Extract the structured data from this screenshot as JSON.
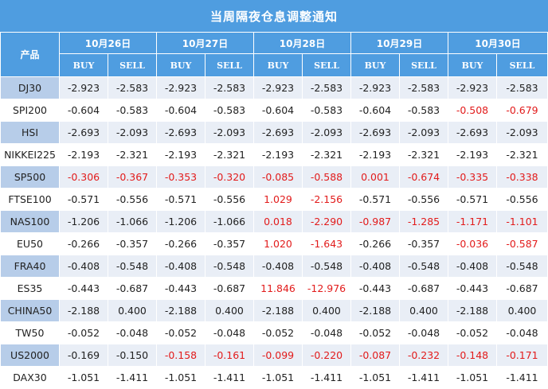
{
  "title": "当周隔夜仓息调整通知",
  "product_header": "产品",
  "dates": [
    "10月26日",
    "10月27日",
    "10月28日",
    "10月29日",
    "10月30日"
  ],
  "buy_label": "BUY",
  "sell_label": "SELL",
  "highlight_color": "#e21b1b",
  "rows": [
    {
      "product": "DJ30",
      "cells": [
        {
          "v": "-2.923",
          "h": false
        },
        {
          "v": "-2.583",
          "h": false
        },
        {
          "v": "-2.923",
          "h": false
        },
        {
          "v": "-2.583",
          "h": false
        },
        {
          "v": "-2.923",
          "h": false
        },
        {
          "v": "-2.583",
          "h": false
        },
        {
          "v": "-2.923",
          "h": false
        },
        {
          "v": "-2.583",
          "h": false
        },
        {
          "v": "-2.923",
          "h": false
        },
        {
          "v": "-2.583",
          "h": false
        }
      ]
    },
    {
      "product": "SPI200",
      "cells": [
        {
          "v": "-0.604",
          "h": false
        },
        {
          "v": "-0.583",
          "h": false
        },
        {
          "v": "-0.604",
          "h": false
        },
        {
          "v": "-0.583",
          "h": false
        },
        {
          "v": "-0.604",
          "h": false
        },
        {
          "v": "-0.583",
          "h": false
        },
        {
          "v": "-0.604",
          "h": false
        },
        {
          "v": "-0.583",
          "h": false
        },
        {
          "v": "-0.508",
          "h": true
        },
        {
          "v": "-0.679",
          "h": true
        }
      ]
    },
    {
      "product": "HSI",
      "cells": [
        {
          "v": "-2.693",
          "h": false
        },
        {
          "v": "-2.093",
          "h": false
        },
        {
          "v": "-2.693",
          "h": false
        },
        {
          "v": "-2.093",
          "h": false
        },
        {
          "v": "-2.693",
          "h": false
        },
        {
          "v": "-2.093",
          "h": false
        },
        {
          "v": "-2.693",
          "h": false
        },
        {
          "v": "-2.093",
          "h": false
        },
        {
          "v": "-2.693",
          "h": false
        },
        {
          "v": "-2.093",
          "h": false
        }
      ]
    },
    {
      "product": "NIKKEI225",
      "cells": [
        {
          "v": "-2.193",
          "h": false
        },
        {
          "v": "-2.321",
          "h": false
        },
        {
          "v": "-2.193",
          "h": false
        },
        {
          "v": "-2.321",
          "h": false
        },
        {
          "v": "-2.193",
          "h": false
        },
        {
          "v": "-2.321",
          "h": false
        },
        {
          "v": "-2.193",
          "h": false
        },
        {
          "v": "-2.321",
          "h": false
        },
        {
          "v": "-2.193",
          "h": false
        },
        {
          "v": "-2.321",
          "h": false
        }
      ]
    },
    {
      "product": "SP500",
      "cells": [
        {
          "v": "-0.306",
          "h": true
        },
        {
          "v": "-0.367",
          "h": true
        },
        {
          "v": "-0.353",
          "h": true
        },
        {
          "v": "-0.320",
          "h": true
        },
        {
          "v": "-0.085",
          "h": true
        },
        {
          "v": "-0.588",
          "h": true
        },
        {
          "v": "0.001",
          "h": true
        },
        {
          "v": "-0.674",
          "h": true
        },
        {
          "v": "-0.335",
          "h": true
        },
        {
          "v": "-0.338",
          "h": true
        }
      ]
    },
    {
      "product": "FTSE100",
      "cells": [
        {
          "v": "-0.571",
          "h": false
        },
        {
          "v": "-0.556",
          "h": false
        },
        {
          "v": "-0.571",
          "h": false
        },
        {
          "v": "-0.556",
          "h": false
        },
        {
          "v": "1.029",
          "h": true
        },
        {
          "v": "-2.156",
          "h": true
        },
        {
          "v": "-0.571",
          "h": false
        },
        {
          "v": "-0.556",
          "h": false
        },
        {
          "v": "-0.571",
          "h": false
        },
        {
          "v": "-0.556",
          "h": false
        }
      ]
    },
    {
      "product": "NAS100",
      "cells": [
        {
          "v": "-1.206",
          "h": false
        },
        {
          "v": "-1.066",
          "h": false
        },
        {
          "v": "-1.206",
          "h": false
        },
        {
          "v": "-1.066",
          "h": false
        },
        {
          "v": "0.018",
          "h": true
        },
        {
          "v": "-2.290",
          "h": true
        },
        {
          "v": "-0.987",
          "h": true
        },
        {
          "v": "-1.285",
          "h": true
        },
        {
          "v": "-1.171",
          "h": true
        },
        {
          "v": "-1.101",
          "h": true
        }
      ]
    },
    {
      "product": "EU50",
      "cells": [
        {
          "v": "-0.266",
          "h": false
        },
        {
          "v": "-0.357",
          "h": false
        },
        {
          "v": "-0.266",
          "h": false
        },
        {
          "v": "-0.357",
          "h": false
        },
        {
          "v": "1.020",
          "h": true
        },
        {
          "v": "-1.643",
          "h": true
        },
        {
          "v": "-0.266",
          "h": false
        },
        {
          "v": "-0.357",
          "h": false
        },
        {
          "v": "-0.036",
          "h": true
        },
        {
          "v": "-0.587",
          "h": true
        }
      ]
    },
    {
      "product": "FRA40",
      "cells": [
        {
          "v": "-0.408",
          "h": false
        },
        {
          "v": "-0.548",
          "h": false
        },
        {
          "v": "-0.408",
          "h": false
        },
        {
          "v": "-0.548",
          "h": false
        },
        {
          "v": "-0.408",
          "h": false
        },
        {
          "v": "-0.548",
          "h": false
        },
        {
          "v": "-0.408",
          "h": false
        },
        {
          "v": "-0.548",
          "h": false
        },
        {
          "v": "-0.408",
          "h": false
        },
        {
          "v": "-0.548",
          "h": false
        }
      ]
    },
    {
      "product": "ES35",
      "cells": [
        {
          "v": "-0.443",
          "h": false
        },
        {
          "v": "-0.687",
          "h": false
        },
        {
          "v": "-0.443",
          "h": false
        },
        {
          "v": "-0.687",
          "h": false
        },
        {
          "v": "11.846",
          "h": true
        },
        {
          "v": "-12.976",
          "h": true
        },
        {
          "v": "-0.443",
          "h": false
        },
        {
          "v": "-0.687",
          "h": false
        },
        {
          "v": "-0.443",
          "h": false
        },
        {
          "v": "-0.687",
          "h": false
        }
      ]
    },
    {
      "product": "CHINA50",
      "cells": [
        {
          "v": "-2.188",
          "h": false
        },
        {
          "v": "0.400",
          "h": false
        },
        {
          "v": "-2.188",
          "h": false
        },
        {
          "v": "0.400",
          "h": false
        },
        {
          "v": "-2.188",
          "h": false
        },
        {
          "v": "0.400",
          "h": false
        },
        {
          "v": "-2.188",
          "h": false
        },
        {
          "v": "0.400",
          "h": false
        },
        {
          "v": "-2.188",
          "h": false
        },
        {
          "v": "0.400",
          "h": false
        }
      ]
    },
    {
      "product": "TW50",
      "cells": [
        {
          "v": "-0.052",
          "h": false
        },
        {
          "v": "-0.048",
          "h": false
        },
        {
          "v": "-0.052",
          "h": false
        },
        {
          "v": "-0.048",
          "h": false
        },
        {
          "v": "-0.052",
          "h": false
        },
        {
          "v": "-0.048",
          "h": false
        },
        {
          "v": "-0.052",
          "h": false
        },
        {
          "v": "-0.048",
          "h": false
        },
        {
          "v": "-0.052",
          "h": false
        },
        {
          "v": "-0.048",
          "h": false
        }
      ]
    },
    {
      "product": "US2000",
      "cells": [
        {
          "v": "-0.169",
          "h": false
        },
        {
          "v": "-0.150",
          "h": false
        },
        {
          "v": "-0.158",
          "h": true
        },
        {
          "v": "-0.161",
          "h": true
        },
        {
          "v": "-0.099",
          "h": true
        },
        {
          "v": "-0.220",
          "h": true
        },
        {
          "v": "-0.087",
          "h": true
        },
        {
          "v": "-0.232",
          "h": true
        },
        {
          "v": "-0.148",
          "h": true
        },
        {
          "v": "-0.171",
          "h": true
        }
      ]
    },
    {
      "product": "DAX30",
      "cells": [
        {
          "v": "-1.051",
          "h": false
        },
        {
          "v": "-1.411",
          "h": false
        },
        {
          "v": "-1.051",
          "h": false
        },
        {
          "v": "-1.411",
          "h": false
        },
        {
          "v": "-1.051",
          "h": false
        },
        {
          "v": "-1.411",
          "h": false
        },
        {
          "v": "-1.051",
          "h": false
        },
        {
          "v": "-1.411",
          "h": false
        },
        {
          "v": "-1.051",
          "h": false
        },
        {
          "v": "-1.411",
          "h": false
        }
      ]
    }
  ]
}
